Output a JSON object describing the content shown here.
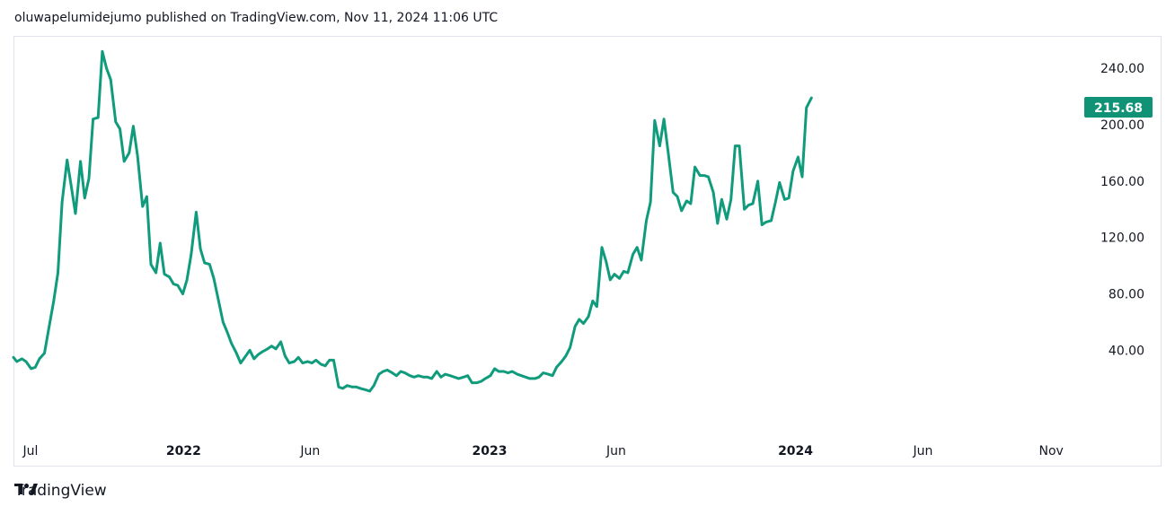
{
  "header": {
    "caption": "oluwapelumidejumo published on TradingView.com, Nov 11, 2024 11:06 UTC"
  },
  "footer": {
    "brand": "TradingView"
  },
  "colors": {
    "line": "#109b7d",
    "price_tag": "#0f9275",
    "border": "#e0e3eb",
    "text": "#131722"
  },
  "chart_data": {
    "type": "line",
    "title": "",
    "last_price": "215.68",
    "y_ticks": [
      "40.00",
      "80.00",
      "120.00",
      "160.00",
      "200.00",
      "240.00"
    ],
    "y_tick_values": [
      40,
      80,
      120,
      160,
      200,
      240
    ],
    "ylim": [
      -17,
      263
    ],
    "x_ticks": [
      {
        "label": "Jul",
        "date": "2021-07-01",
        "year": false
      },
      {
        "label": "2022",
        "date": "2022-01-01",
        "year": true
      },
      {
        "label": "Jun",
        "date": "2022-06-01",
        "year": false
      },
      {
        "label": "2023",
        "date": "2023-01-01",
        "year": true
      },
      {
        "label": "Jun",
        "date": "2023-06-01",
        "year": false
      },
      {
        "label": "2024",
        "date": "2024-01-01",
        "year": true
      },
      {
        "label": "Jun",
        "date": "2024-06-01",
        "year": false
      },
      {
        "label": "Nov",
        "date": "2024-11-01",
        "year": false
      }
    ],
    "xlim": [
      "2021-06-12",
      "2024-12-03"
    ],
    "series": [
      {
        "values": [
          [
            "2021-06-12",
            35
          ],
          [
            "2021-06-16",
            32
          ],
          [
            "2021-06-22",
            34
          ],
          [
            "2021-06-27",
            32
          ],
          [
            "2021-07-03",
            27
          ],
          [
            "2021-07-08",
            28
          ],
          [
            "2021-07-13",
            34
          ],
          [
            "2021-07-19",
            38
          ],
          [
            "2021-07-24",
            55
          ],
          [
            "2021-07-30",
            75
          ],
          [
            "2021-08-04",
            95
          ],
          [
            "2021-08-09",
            145
          ],
          [
            "2021-08-15",
            175
          ],
          [
            "2021-08-20",
            156
          ],
          [
            "2021-08-25",
            137
          ],
          [
            "2021-08-31",
            174
          ],
          [
            "2021-09-05",
            148
          ],
          [
            "2021-09-10",
            162
          ],
          [
            "2021-09-15",
            204
          ],
          [
            "2021-09-21",
            205
          ],
          [
            "2021-09-26",
            252
          ],
          [
            "2021-10-01",
            240
          ],
          [
            "2021-10-06",
            232
          ],
          [
            "2021-10-12",
            202
          ],
          [
            "2021-10-17",
            197
          ],
          [
            "2021-10-22",
            174
          ],
          [
            "2021-10-28",
            180
          ],
          [
            "2021-11-02",
            199
          ],
          [
            "2021-11-07",
            178
          ],
          [
            "2021-11-13",
            142
          ],
          [
            "2021-11-18",
            149
          ],
          [
            "2021-11-23",
            101
          ],
          [
            "2021-11-29",
            95
          ],
          [
            "2021-12-04",
            116
          ],
          [
            "2021-12-09",
            94
          ],
          [
            "2021-12-15",
            92
          ],
          [
            "2021-12-20",
            87
          ],
          [
            "2021-12-25",
            86
          ],
          [
            "2021-12-31",
            80
          ],
          [
            "2022-01-05",
            90
          ],
          [
            "2022-01-10",
            108
          ],
          [
            "2022-01-16",
            138
          ],
          [
            "2022-01-21",
            112
          ],
          [
            "2022-01-26",
            102
          ],
          [
            "2022-02-01",
            101
          ],
          [
            "2022-02-06",
            91
          ],
          [
            "2022-02-11",
            77
          ],
          [
            "2022-02-17",
            60
          ],
          [
            "2022-02-22",
            53
          ],
          [
            "2022-02-27",
            45
          ],
          [
            "2022-03-05",
            38
          ],
          [
            "2022-03-10",
            31
          ],
          [
            "2022-03-15",
            35
          ],
          [
            "2022-03-21",
            40
          ],
          [
            "2022-03-26",
            34
          ],
          [
            "2022-03-31",
            37
          ],
          [
            "2022-04-05",
            39
          ],
          [
            "2022-04-11",
            41
          ],
          [
            "2022-04-16",
            43
          ],
          [
            "2022-04-21",
            41
          ],
          [
            "2022-04-27",
            46
          ],
          [
            "2022-05-02",
            36
          ],
          [
            "2022-05-07",
            31
          ],
          [
            "2022-05-13",
            32
          ],
          [
            "2022-05-18",
            35
          ],
          [
            "2022-05-23",
            31
          ],
          [
            "2022-05-29",
            32
          ],
          [
            "2022-06-03",
            31
          ],
          [
            "2022-06-08",
            33
          ],
          [
            "2022-06-14",
            30
          ],
          [
            "2022-06-19",
            29
          ],
          [
            "2022-06-24",
            33
          ],
          [
            "2022-06-29",
            33
          ],
          [
            "2022-07-05",
            14
          ],
          [
            "2022-07-10",
            13
          ],
          [
            "2022-07-15",
            15
          ],
          [
            "2022-07-21",
            14
          ],
          [
            "2022-07-26",
            14
          ],
          [
            "2022-07-31",
            13
          ],
          [
            "2022-08-06",
            12
          ],
          [
            "2022-08-11",
            11
          ],
          [
            "2022-08-16",
            15
          ],
          [
            "2022-08-22",
            23
          ],
          [
            "2022-08-27",
            25
          ],
          [
            "2022-09-01",
            26
          ],
          [
            "2022-09-07",
            24
          ],
          [
            "2022-09-12",
            22
          ],
          [
            "2022-09-17",
            25
          ],
          [
            "2022-09-22",
            24
          ],
          [
            "2022-09-28",
            22
          ],
          [
            "2022-10-03",
            21
          ],
          [
            "2022-10-08",
            22
          ],
          [
            "2022-10-14",
            21
          ],
          [
            "2022-10-19",
            21
          ],
          [
            "2022-10-24",
            20
          ],
          [
            "2022-10-30",
            25
          ],
          [
            "2022-11-04",
            21
          ],
          [
            "2022-11-09",
            23
          ],
          [
            "2022-11-15",
            22
          ],
          [
            "2022-11-20",
            21
          ],
          [
            "2022-11-25",
            20
          ],
          [
            "2022-12-01",
            21
          ],
          [
            "2022-12-06",
            22
          ],
          [
            "2022-12-11",
            17
          ],
          [
            "2022-12-17",
            17
          ],
          [
            "2022-12-22",
            18
          ],
          [
            "2022-12-27",
            20
          ],
          [
            "2023-01-02",
            22
          ],
          [
            "2023-01-07",
            27
          ],
          [
            "2023-01-12",
            25
          ],
          [
            "2023-01-18",
            25
          ],
          [
            "2023-01-23",
            24
          ],
          [
            "2023-01-28",
            25
          ],
          [
            "2023-02-03",
            23
          ],
          [
            "2023-02-08",
            22
          ],
          [
            "2023-02-13",
            21
          ],
          [
            "2023-02-18",
            20
          ],
          [
            "2023-02-24",
            20
          ],
          [
            "2023-03-01",
            21
          ],
          [
            "2023-03-06",
            24
          ],
          [
            "2023-03-12",
            23
          ],
          [
            "2023-03-17",
            22
          ],
          [
            "2023-03-22",
            28
          ],
          [
            "2023-03-28",
            32
          ],
          [
            "2023-04-02",
            36
          ],
          [
            "2023-04-07",
            42
          ],
          [
            "2023-04-13",
            57
          ],
          [
            "2023-04-18",
            62
          ],
          [
            "2023-04-23",
            59
          ],
          [
            "2023-04-29",
            64
          ],
          [
            "2023-05-04",
            75
          ],
          [
            "2023-05-09",
            71
          ],
          [
            "2023-05-15",
            113
          ],
          [
            "2023-05-20",
            103
          ],
          [
            "2023-05-25",
            90
          ],
          [
            "2023-05-30",
            94
          ],
          [
            "2023-06-05",
            91
          ],
          [
            "2023-06-10",
            96
          ],
          [
            "2023-06-15",
            95
          ],
          [
            "2023-06-21",
            108
          ],
          [
            "2023-06-26",
            113
          ],
          [
            "2023-07-01",
            104
          ],
          [
            "2023-07-07",
            132
          ],
          [
            "2023-07-12",
            145
          ],
          [
            "2023-07-17",
            203
          ],
          [
            "2023-07-23",
            185
          ],
          [
            "2023-07-28",
            204
          ],
          [
            "2023-08-02",
            181
          ],
          [
            "2023-08-08",
            152
          ],
          [
            "2023-08-13",
            149
          ],
          [
            "2023-08-18",
            139
          ],
          [
            "2023-08-24",
            146
          ],
          [
            "2023-08-29",
            144
          ],
          [
            "2023-09-03",
            170
          ],
          [
            "2023-09-09",
            164
          ],
          [
            "2023-09-14",
            164
          ],
          [
            "2023-09-19",
            163
          ],
          [
            "2023-09-25",
            152
          ],
          [
            "2023-09-30",
            130
          ],
          [
            "2023-10-05",
            147
          ],
          [
            "2023-10-11",
            133
          ],
          [
            "2023-10-16",
            147
          ],
          [
            "2023-10-21",
            185
          ],
          [
            "2023-10-26",
            185
          ],
          [
            "2023-11-01",
            140
          ],
          [
            "2023-11-06",
            143
          ],
          [
            "2023-11-11",
            144
          ],
          [
            "2023-11-17",
            160
          ],
          [
            "2023-11-22",
            129
          ],
          [
            "2023-11-27",
            131
          ],
          [
            "2023-12-03",
            132
          ],
          [
            "2023-12-08",
            145
          ],
          [
            "2023-12-13",
            159
          ],
          [
            "2023-12-19",
            147
          ],
          [
            "2023-12-24",
            148
          ],
          [
            "2023-12-29",
            167
          ],
          [
            "2024-01-04",
            177
          ],
          [
            "2024-01-09",
            163
          ],
          [
            "2024-01-14",
            212
          ],
          [
            "2024-01-20",
            219
          ]
        ]
      }
    ]
  }
}
